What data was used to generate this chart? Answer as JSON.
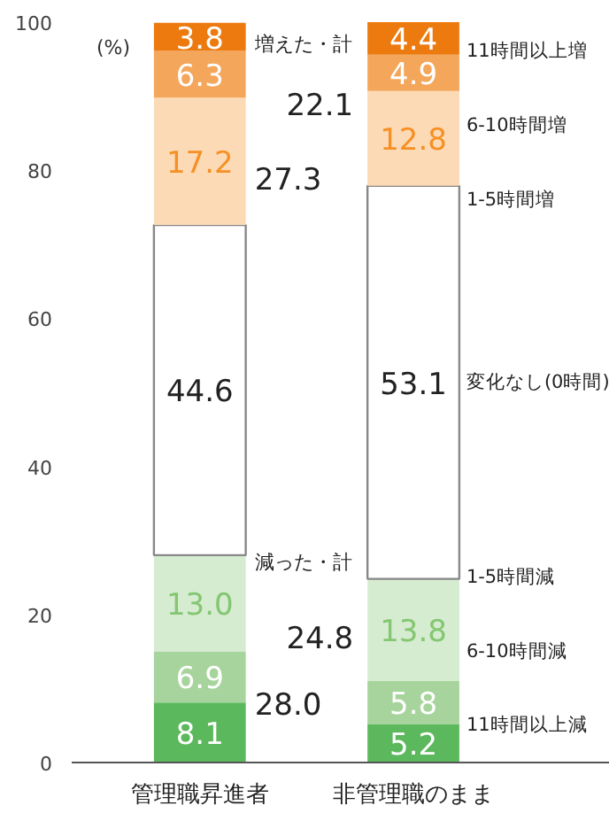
{
  "chart_data": {
    "type": "bar",
    "stacked": true,
    "ylabel": "(%)",
    "categories": [
      "管理職昇進者",
      "非管理職のまま"
    ],
    "series": [
      {
        "name": "11時間以上減",
        "color": "#5cb85c",
        "values": [
          8.1,
          5.2
        ],
        "value_labels": [
          "8.1",
          "5.2"
        ]
      },
      {
        "name": "6-10時間減",
        "color": "#a6d49c",
        "values": [
          6.9,
          5.8
        ],
        "value_labels": [
          "6.9",
          "5.8"
        ]
      },
      {
        "name": "1-5時間減",
        "color": "#d6ecd0",
        "values": [
          13.0,
          13.8
        ],
        "value_labels": [
          "13.0",
          "13.8"
        ]
      },
      {
        "name": "変化なし(0時間)",
        "color": "#ffffff",
        "values": [
          44.6,
          53.1
        ],
        "value_labels": [
          "44.6",
          "53.1"
        ]
      },
      {
        "name": "1-5時間増",
        "color": "#fcdab6",
        "values": [
          17.2,
          12.8
        ],
        "value_labels": [
          "17.2",
          "12.8"
        ]
      },
      {
        "name": "6-10時間増",
        "color": "#f4a65a",
        "values": [
          6.3,
          4.9
        ],
        "value_labels": [
          "6.3",
          "4.9"
        ]
      },
      {
        "name": "11時間以上増",
        "color": "#ec7a0e",
        "values": [
          3.8,
          4.4
        ],
        "value_labels": [
          "3.8",
          "4.4"
        ]
      }
    ],
    "ylim": [
      0,
      100
    ],
    "yticks": [
      0,
      20,
      40,
      60,
      80,
      100
    ],
    "grid": false,
    "annotations": [
      "増えた・計",
      "27.3",
      "22.1",
      "減った・計",
      "28.0",
      "24.8"
    ]
  }
}
